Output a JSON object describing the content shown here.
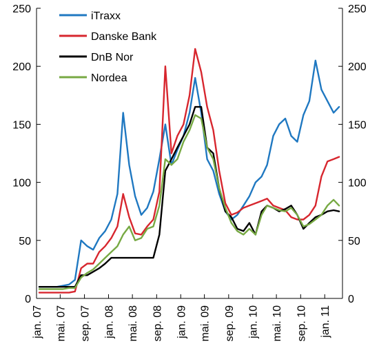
{
  "chart_data": {
    "type": "line",
    "title": "",
    "xlabel": "",
    "ylabel": "",
    "ylim": [
      0,
      250
    ],
    "xlim": [
      "2007-01-01",
      "2011-04-01"
    ],
    "yticks": [
      0,
      50,
      100,
      150,
      200,
      250
    ],
    "right_axis_mirrors_left": true,
    "grid": false,
    "legend_position": "top-left",
    "x_tick_labels": [
      "jan. 07",
      "mai. 07",
      "sep. 07",
      "jan. 08",
      "mai. 08",
      "sep. 08",
      "jan. 09",
      "mai. 09",
      "sep. 09",
      "jan. 10",
      "mai. 10",
      "sep. 10",
      "jan. 11"
    ],
    "x_tick_dates": [
      "2007-01-01",
      "2007-05-01",
      "2007-09-01",
      "2008-01-01",
      "2008-05-01",
      "2008-09-01",
      "2009-01-01",
      "2009-05-01",
      "2009-09-01",
      "2010-01-01",
      "2010-05-01",
      "2010-09-01",
      "2011-01-01"
    ],
    "series": [
      {
        "name": "iTraxx",
        "color": "#1f78c1",
        "x": [
          "2007-01",
          "2007-02",
          "2007-03",
          "2007-04",
          "2007-05",
          "2007-06",
          "2007-07",
          "2007-08",
          "2007-09",
          "2007-10",
          "2007-11",
          "2007-12",
          "2008-01",
          "2008-02",
          "2008-03",
          "2008-04",
          "2008-05",
          "2008-06",
          "2008-07",
          "2008-08",
          "2008-09",
          "2008-10",
          "2008-11",
          "2008-12",
          "2009-01",
          "2009-02",
          "2009-03",
          "2009-04",
          "2009-05",
          "2009-06",
          "2009-07",
          "2009-08",
          "2009-09",
          "2009-10",
          "2009-11",
          "2009-12",
          "2010-01",
          "2010-02",
          "2010-03",
          "2010-04",
          "2010-05",
          "2010-06",
          "2010-07",
          "2010-08",
          "2010-09",
          "2010-10",
          "2010-11",
          "2010-12",
          "2011-01",
          "2011-02",
          "2011-03"
        ],
        "values": [
          10,
          10,
          10,
          10,
          11,
          12,
          16,
          50,
          45,
          42,
          52,
          58,
          68,
          90,
          160,
          115,
          88,
          72,
          78,
          92,
          120,
          150,
          115,
          128,
          140,
          160,
          190,
          160,
          120,
          110,
          90,
          75,
          68,
          72,
          80,
          88,
          100,
          105,
          115,
          140,
          150,
          155,
          140,
          135,
          158,
          170,
          205,
          180,
          170,
          160,
          165
        ]
      },
      {
        "name": "Danske Bank",
        "color": "#d7262e",
        "x": [
          "2007-01",
          "2007-02",
          "2007-03",
          "2007-04",
          "2007-05",
          "2007-06",
          "2007-07",
          "2007-08",
          "2007-09",
          "2007-10",
          "2007-11",
          "2007-12",
          "2008-01",
          "2008-02",
          "2008-03",
          "2008-04",
          "2008-05",
          "2008-06",
          "2008-07",
          "2008-08",
          "2008-09",
          "2008-10",
          "2008-11",
          "2008-12",
          "2009-01",
          "2009-02",
          "2009-03",
          "2009-04",
          "2009-05",
          "2009-06",
          "2009-07",
          "2009-08",
          "2009-09",
          "2009-10",
          "2009-11",
          "2009-12",
          "2010-01",
          "2010-02",
          "2010-03",
          "2010-04",
          "2010-05",
          "2010-06",
          "2010-07",
          "2010-08",
          "2010-09",
          "2010-10",
          "2010-11",
          "2010-12",
          "2011-01",
          "2011-02",
          "2011-03"
        ],
        "values": [
          5,
          5,
          5,
          5,
          5,
          5,
          6,
          26,
          30,
          30,
          40,
          45,
          52,
          62,
          90,
          70,
          56,
          55,
          62,
          68,
          92,
          200,
          125,
          140,
          150,
          175,
          215,
          195,
          165,
          145,
          110,
          82,
          72,
          74,
          78,
          80,
          82,
          84,
          86,
          80,
          78,
          76,
          70,
          68,
          68,
          72,
          80,
          105,
          118,
          120,
          122
        ]
      },
      {
        "name": "DnB Nor",
        "color": "#000000",
        "x": [
          "2007-01",
          "2007-02",
          "2007-03",
          "2007-04",
          "2007-05",
          "2007-06",
          "2007-07",
          "2007-08",
          "2007-09",
          "2007-10",
          "2007-11",
          "2007-12",
          "2008-01",
          "2008-02",
          "2008-03",
          "2008-04",
          "2008-05",
          "2008-06",
          "2008-07",
          "2008-08",
          "2008-09",
          "2008-10",
          "2008-11",
          "2008-12",
          "2009-01",
          "2009-02",
          "2009-03",
          "2009-04",
          "2009-05",
          "2009-06",
          "2009-07",
          "2009-08",
          "2009-09",
          "2009-10",
          "2009-11",
          "2009-12",
          "2010-01",
          "2010-02",
          "2010-03",
          "2010-04",
          "2010-05",
          "2010-06",
          "2010-07",
          "2010-08",
          "2010-09",
          "2010-10",
          "2010-11",
          "2010-12",
          "2011-01",
          "2011-02",
          "2011-03"
        ],
        "values": [
          10,
          10,
          10,
          10,
          10,
          10,
          10,
          20,
          20,
          23,
          26,
          30,
          35,
          35,
          35,
          35,
          35,
          35,
          35,
          35,
          55,
          110,
          120,
          130,
          140,
          150,
          165,
          165,
          130,
          125,
          95,
          75,
          70,
          60,
          58,
          65,
          55,
          75,
          80,
          78,
          75,
          77,
          80,
          72,
          60,
          65,
          70,
          72,
          75,
          76,
          75
        ]
      },
      {
        "name": "Nordea",
        "color": "#77a943",
        "x": [
          "2007-01",
          "2007-02",
          "2007-03",
          "2007-04",
          "2007-05",
          "2007-06",
          "2007-07",
          "2007-08",
          "2007-09",
          "2007-10",
          "2007-11",
          "2007-12",
          "2008-01",
          "2008-02",
          "2008-03",
          "2008-04",
          "2008-05",
          "2008-06",
          "2008-07",
          "2008-08",
          "2008-09",
          "2008-10",
          "2008-11",
          "2008-12",
          "2009-01",
          "2009-02",
          "2009-03",
          "2009-04",
          "2009-05",
          "2009-06",
          "2009-07",
          "2009-08",
          "2009-09",
          "2009-10",
          "2009-11",
          "2009-12",
          "2010-01",
          "2010-02",
          "2010-03",
          "2010-04",
          "2010-05",
          "2010-06",
          "2010-07",
          "2010-08",
          "2010-09",
          "2010-10",
          "2010-11",
          "2010-12",
          "2011-01",
          "2011-02",
          "2011-03"
        ],
        "values": [
          8,
          8,
          8,
          8,
          8,
          9,
          9,
          18,
          22,
          25,
          30,
          35,
          40,
          45,
          55,
          62,
          50,
          52,
          60,
          62,
          80,
          120,
          115,
          120,
          135,
          145,
          158,
          155,
          130,
          120,
          95,
          78,
          65,
          58,
          55,
          60,
          55,
          72,
          80,
          78,
          76,
          75,
          78,
          72,
          62,
          64,
          68,
          72,
          80,
          85,
          80
        ]
      }
    ]
  }
}
